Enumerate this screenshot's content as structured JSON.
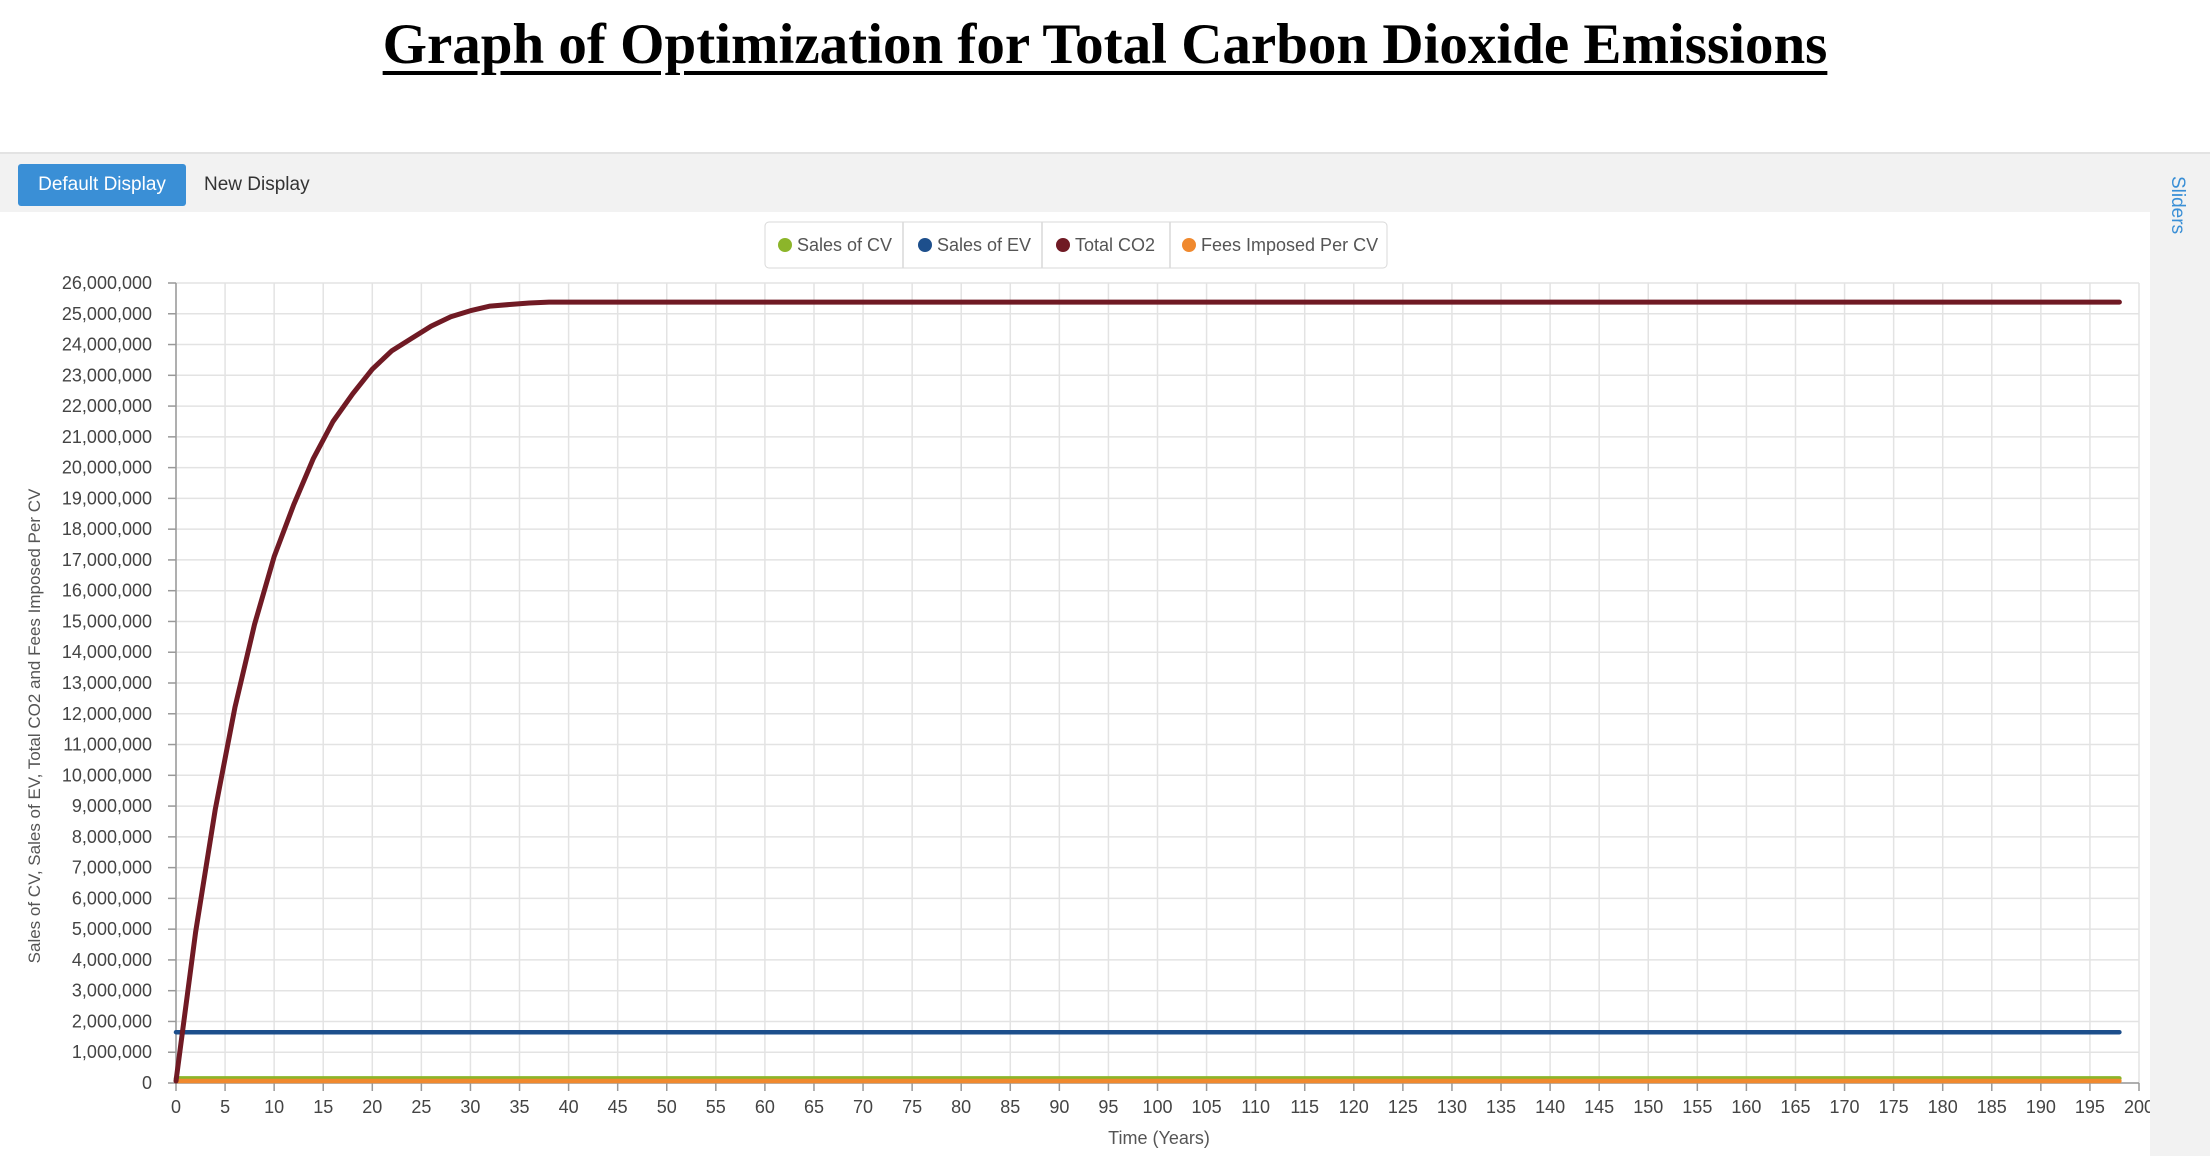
{
  "page_title": "Graph of Optimization for Total Carbon Dioxide Emissions",
  "toolbar": {
    "default_display_label": "Default Display",
    "new_display_label": "New Display",
    "sliders_label": "Sliders"
  },
  "colors": {
    "sales_cv": "#8cb52a",
    "sales_ev": "#1d4f8c",
    "total_co2": "#701a24",
    "fees": "#f0892e",
    "accent": "#3a8fd6",
    "grid": "#e3e3e3"
  },
  "chart_data": {
    "type": "line",
    "title": "",
    "xlabel": "Time (Years)",
    "ylabel": "Sales of CV, Sales of EV, Total CO2 and Fees Imposed Per CV",
    "xlim": [
      0,
      200
    ],
    "ylim": [
      0,
      26000000
    ],
    "x_ticks": [
      0,
      5,
      10,
      15,
      20,
      25,
      30,
      35,
      40,
      45,
      50,
      55,
      60,
      65,
      70,
      75,
      80,
      85,
      90,
      95,
      100,
      105,
      110,
      115,
      120,
      125,
      130,
      135,
      140,
      145,
      150,
      155,
      160,
      165,
      170,
      175,
      180,
      185,
      190,
      195,
      200
    ],
    "x_tick_labels": [
      "0",
      "5",
      "10",
      "15",
      "20",
      "25",
      "30",
      "35",
      "40",
      "45",
      "50",
      "55",
      "60",
      "65",
      "70",
      "75",
      "80",
      "85",
      "90",
      "95",
      "100",
      "105",
      "110",
      "115",
      "120",
      "125",
      "130",
      "135",
      "140",
      "145",
      "150",
      "155",
      "160",
      "165",
      "170",
      "175",
      "180",
      "185",
      "190",
      "195",
      "200"
    ],
    "y_ticks": [
      0,
      1000000,
      2000000,
      3000000,
      4000000,
      5000000,
      6000000,
      7000000,
      8000000,
      9000000,
      10000000,
      11000000,
      12000000,
      13000000,
      14000000,
      15000000,
      16000000,
      17000000,
      18000000,
      19000000,
      20000000,
      21000000,
      22000000,
      23000000,
      24000000,
      25000000,
      26000000
    ],
    "y_tick_labels": [
      "0",
      "1,000,000",
      "2,000,000",
      "3,000,000",
      "4,000,000",
      "5,000,000",
      "6,000,000",
      "7,000,000",
      "8,000,000",
      "9,000,000",
      "10,000,000",
      "11,000,000",
      "12,000,000",
      "13,000,000",
      "14,000,000",
      "15,000,000",
      "16,000,000",
      "17,000,000",
      "18,000,000",
      "19,000,000",
      "20,000,000",
      "21,000,000",
      "22,000,000",
      "23,000,000",
      "24,000,000",
      "25,000,000",
      "26,000,000"
    ],
    "grid": true,
    "legend_position": "top-center",
    "x": [
      0,
      2,
      4,
      6,
      8,
      10,
      12,
      14,
      16,
      18,
      20,
      22,
      24,
      26,
      28,
      30,
      32,
      34,
      36,
      38,
      40,
      45,
      50,
      55,
      60,
      70,
      80,
      90,
      100,
      120,
      140,
      160,
      180,
      198
    ],
    "series": [
      {
        "name": "Sales of CV",
        "color": "#8cb52a",
        "values": [
          150000,
          150000,
          150000,
          150000,
          150000,
          150000,
          150000,
          150000,
          150000,
          150000,
          150000,
          150000,
          150000,
          150000,
          150000,
          150000,
          150000,
          150000,
          150000,
          150000,
          150000,
          150000,
          150000,
          150000,
          150000,
          150000,
          150000,
          150000,
          150000,
          150000,
          150000,
          150000,
          150000,
          150000
        ]
      },
      {
        "name": "Sales of EV",
        "color": "#1d4f8c",
        "values": [
          1650000,
          1650000,
          1650000,
          1650000,
          1650000,
          1650000,
          1650000,
          1650000,
          1650000,
          1650000,
          1650000,
          1650000,
          1650000,
          1650000,
          1650000,
          1650000,
          1650000,
          1650000,
          1650000,
          1650000,
          1650000,
          1650000,
          1650000,
          1650000,
          1650000,
          1650000,
          1650000,
          1650000,
          1650000,
          1650000,
          1650000,
          1650000,
          1650000,
          1650000
        ]
      },
      {
        "name": "Total CO2",
        "color": "#701a24",
        "values": [
          0,
          4900000,
          8900000,
          12200000,
          14900000,
          17100000,
          18800000,
          20300000,
          21500000,
          22400000,
          23200000,
          23800000,
          24200000,
          24600000,
          24900000,
          25100000,
          25250000,
          25300000,
          25350000,
          25380000,
          25380000,
          25380000,
          25380000,
          25380000,
          25380000,
          25380000,
          25380000,
          25380000,
          25380000,
          25380000,
          25380000,
          25380000,
          25380000,
          25380000
        ]
      },
      {
        "name": "Fees Imposed Per CV",
        "color": "#f0892e",
        "values": [
          50,
          50,
          50,
          50,
          50,
          50,
          50,
          50,
          50,
          50,
          50,
          50,
          50,
          50,
          50,
          50,
          50,
          50,
          50,
          50,
          50,
          50,
          50,
          50,
          50,
          50,
          50,
          50,
          50,
          50,
          50,
          50,
          50,
          50
        ]
      }
    ]
  }
}
